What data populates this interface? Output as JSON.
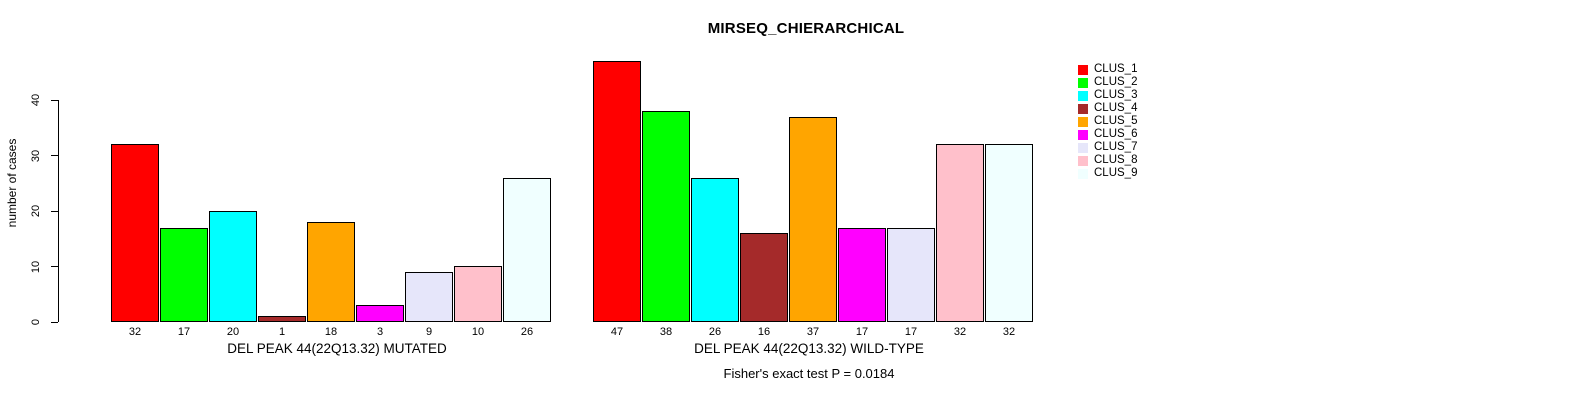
{
  "figure": {
    "title": "MIRSEQ_CHIERARCHICAL",
    "ylabel": "number of cases",
    "footnote": "Fisher's exact test P = 0.0184"
  },
  "legend": {
    "position": "right",
    "items": [
      {
        "label": "CLUS_1",
        "color": "#FF0000"
      },
      {
        "label": "CLUS_2",
        "color": "#00FF00"
      },
      {
        "label": "CLUS_3",
        "color": "#00FFFF"
      },
      {
        "label": "CLUS_4",
        "color": "#A52A2A"
      },
      {
        "label": "CLUS_5",
        "color": "#FFA500"
      },
      {
        "label": "CLUS_6",
        "color": "#FF00FF"
      },
      {
        "label": "CLUS_7",
        "color": "#E6E6FA"
      },
      {
        "label": "CLUS_8",
        "color": "#FFC0CB"
      },
      {
        "label": "CLUS_9",
        "color": "#F0FFFF"
      }
    ]
  },
  "chart_data": [
    {
      "type": "bar",
      "panel": "mutated",
      "title": "MIRSEQ_CHIERARCHICAL",
      "xlabel": "DEL PEAK 44(22Q13.32) MUTATED",
      "ylabel": "number of cases",
      "categories": [
        "CLUS_1",
        "CLUS_2",
        "CLUS_3",
        "CLUS_4",
        "CLUS_5",
        "CLUS_6",
        "CLUS_7",
        "CLUS_8",
        "CLUS_9"
      ],
      "values": [
        32,
        17,
        20,
        1,
        18,
        3,
        9,
        10,
        26
      ],
      "colors": [
        "#FF0000",
        "#00FF00",
        "#00FFFF",
        "#A52A2A",
        "#FFA500",
        "#FF00FF",
        "#E6E6FA",
        "#FFC0CB",
        "#F0FFFF"
      ],
      "ylim": [
        0,
        47
      ],
      "yticks": [
        0,
        10,
        20,
        30,
        40
      ],
      "show_yaxis": true,
      "grid": false,
      "bar_value_labels_shown": true
    },
    {
      "type": "bar",
      "panel": "wild-type",
      "title": "MIRSEQ_CHIERARCHICAL",
      "xlabel": "DEL PEAK 44(22Q13.32) WILD-TYPE",
      "ylabel": "number of cases",
      "categories": [
        "CLUS_1",
        "CLUS_2",
        "CLUS_3",
        "CLUS_4",
        "CLUS_5",
        "CLUS_6",
        "CLUS_7",
        "CLUS_8",
        "CLUS_9"
      ],
      "values": [
        47,
        38,
        26,
        16,
        37,
        17,
        17,
        32,
        32
      ],
      "colors": [
        "#FF0000",
        "#00FF00",
        "#00FFFF",
        "#A52A2A",
        "#FFA500",
        "#FF00FF",
        "#E6E6FA",
        "#FFC0CB",
        "#F0FFFF"
      ],
      "ylim": [
        0,
        47
      ],
      "yticks": [
        0,
        10,
        20,
        30,
        40
      ],
      "show_yaxis": false,
      "grid": false,
      "bar_value_labels_shown": true
    }
  ]
}
